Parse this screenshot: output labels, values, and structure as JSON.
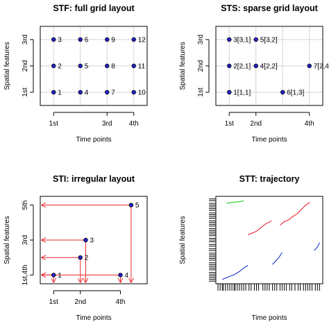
{
  "chart_data": [
    {
      "type": "scatter",
      "title": "STF: full grid layout",
      "xlabel": "Time points",
      "ylabel": "Spatial features",
      "xlim": [
        0.5,
        4.5
      ],
      "ylim": [
        0.5,
        3.5
      ],
      "x_ticks": [
        {
          "v": 1,
          "label": "1st"
        },
        {
          "v": 3,
          "label": "3rd"
        },
        {
          "v": 4,
          "label": "4th"
        }
      ],
      "y_ticks": [
        {
          "v": 1,
          "label": "1st"
        },
        {
          "v": 2,
          "label": "2nd"
        },
        {
          "v": 3,
          "label": "3rd"
        }
      ],
      "grid": true,
      "points": [
        {
          "x": 1,
          "y": 1,
          "label": "1"
        },
        {
          "x": 1,
          "y": 2,
          "label": "2"
        },
        {
          "x": 1,
          "y": 3,
          "label": "3"
        },
        {
          "x": 2,
          "y": 1,
          "label": "4"
        },
        {
          "x": 2,
          "y": 2,
          "label": "5"
        },
        {
          "x": 2,
          "y": 3,
          "label": "6"
        },
        {
          "x": 3,
          "y": 1,
          "label": "7"
        },
        {
          "x": 3,
          "y": 2,
          "label": "8"
        },
        {
          "x": 3,
          "y": 3,
          "label": "9"
        },
        {
          "x": 4,
          "y": 1,
          "label": "10"
        },
        {
          "x": 4,
          "y": 2,
          "label": "11"
        },
        {
          "x": 4,
          "y": 3,
          "label": "12"
        }
      ]
    },
    {
      "type": "scatter",
      "title": "STS: sparse grid layout",
      "xlabel": "Time points",
      "ylabel": "Spatial features",
      "xlim": [
        0.5,
        4.5
      ],
      "ylim": [
        0.5,
        3.5
      ],
      "x_ticks": [
        {
          "v": 1,
          "label": "1st"
        },
        {
          "v": 2,
          "label": "2nd"
        },
        {
          "v": 4,
          "label": "4th"
        }
      ],
      "y_ticks": [
        {
          "v": 1,
          "label": "1st"
        },
        {
          "v": 2,
          "label": "2nd"
        },
        {
          "v": 3,
          "label": "3rd"
        }
      ],
      "grid": true,
      "points": [
        {
          "x": 1,
          "y": 1,
          "label": "1[1,1]"
        },
        {
          "x": 1,
          "y": 2,
          "label": "2[2,1]"
        },
        {
          "x": 1,
          "y": 3,
          "label": "3[3,1]"
        },
        {
          "x": 2,
          "y": 2,
          "label": "4[2,2]"
        },
        {
          "x": 2,
          "y": 3,
          "label": "5[3,2]"
        },
        {
          "x": 3,
          "y": 1,
          "label": "6[1,3]"
        },
        {
          "x": 4,
          "y": 2,
          "label": "7[2,4]"
        }
      ]
    },
    {
      "type": "scatter",
      "title": "STI: irregular layout",
      "xlabel": "Time points",
      "ylabel": "Spatial features",
      "xlim": [
        0.5,
        4.5
      ],
      "ylim": [
        0.5,
        5.5
      ],
      "x_ticks": [
        {
          "v": 1,
          "label": "1st"
        },
        {
          "v": 2,
          "label": "2nd"
        },
        {
          "v": 3.5,
          "label": "4th"
        }
      ],
      "y_ticks": [
        {
          "v": 1,
          "label": "1st,4th"
        },
        {
          "v": 3,
          "label": "3rd"
        },
        {
          "v": 5,
          "label": "5th"
        }
      ],
      "grid": false,
      "arrow_color": "#e8242b",
      "points": [
        {
          "x": 1,
          "y": 1,
          "label": "1"
        },
        {
          "x": 2,
          "y": 2,
          "label": "2"
        },
        {
          "x": 2.2,
          "y": 3,
          "label": "3"
        },
        {
          "x": 3.5,
          "y": 1,
          "label": "4"
        },
        {
          "x": 3.9,
          "y": 5,
          "label": "5"
        }
      ]
    },
    {
      "type": "line",
      "title": "STT: trajectory",
      "xlabel": "Time points",
      "ylabel": "Spatial features",
      "xlim": [
        0,
        100
      ],
      "ylim": [
        0,
        100
      ],
      "rug": true,
      "series": [
        {
          "color": "#22cc22",
          "points": [
            [
              10,
              92
            ],
            [
              15,
              93
            ],
            [
              19,
              93.5
            ],
            [
              23,
              94
            ],
            [
              26,
              95
            ]
          ]
        },
        {
          "color": "#e8242b",
          "points": [
            [
              30,
              56
            ],
            [
              34,
              58
            ],
            [
              38,
              60
            ],
            [
              42,
              64
            ],
            [
              46,
              68
            ],
            [
              52,
              72
            ]
          ]
        },
        {
          "color": "#e8242b",
          "points": [
            [
              60,
              67
            ],
            [
              64,
              71
            ],
            [
              68,
              73
            ],
            [
              72,
              77
            ],
            [
              76,
              80
            ],
            [
              80,
              85
            ],
            [
              84,
              90
            ],
            [
              88,
              93
            ]
          ]
        },
        {
          "color": "#1a33cc",
          "points": [
            [
              6,
              5
            ],
            [
              10,
              7
            ],
            [
              14,
              9
            ],
            [
              18,
              11
            ],
            [
              22,
              14
            ],
            [
              26,
              18
            ],
            [
              30,
              21
            ]
          ]
        },
        {
          "color": "#1a33cc",
          "points": [
            [
              53,
              22
            ],
            [
              56,
              26
            ],
            [
              59,
              30
            ],
            [
              62,
              36
            ]
          ]
        },
        {
          "color": "#1a33cc",
          "points": [
            [
              92,
              38
            ],
            [
              95,
              42
            ],
            [
              97,
              47
            ]
          ]
        }
      ],
      "rug_x": [
        2,
        4,
        6,
        7,
        9,
        11,
        13,
        15,
        17,
        18,
        20,
        22,
        24,
        26,
        28,
        31,
        33,
        36,
        38,
        40,
        44,
        46,
        48,
        50,
        53,
        55,
        57,
        60,
        62,
        64,
        66,
        69,
        71,
        74,
        77,
        79,
        82,
        84,
        86,
        88,
        90,
        93,
        95,
        97
      ],
      "rug_y": [
        3,
        5,
        7,
        9,
        11,
        13,
        16,
        18,
        20,
        22,
        24,
        27,
        29,
        31,
        33,
        35,
        38,
        40,
        43,
        45,
        48,
        50,
        52,
        55,
        57,
        59,
        61,
        63,
        66,
        68,
        70,
        72,
        75,
        77,
        79,
        81,
        84,
        86,
        88,
        90,
        92,
        95,
        97
      ]
    }
  ]
}
